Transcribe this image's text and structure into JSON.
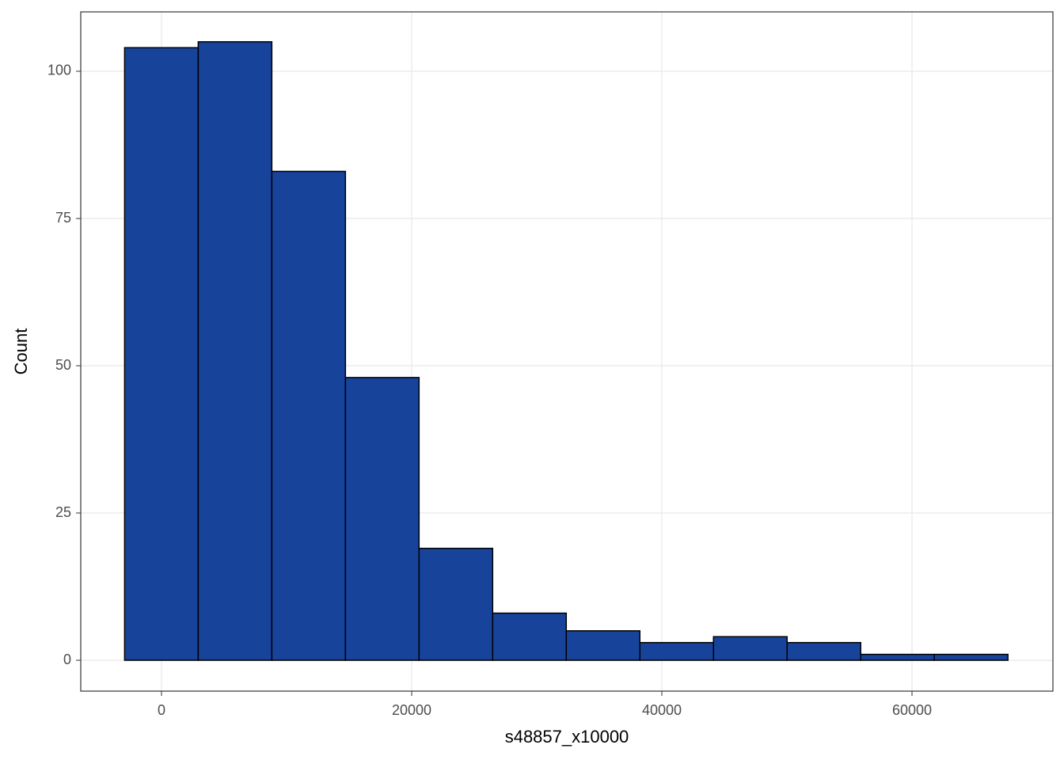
{
  "chart_data": {
    "type": "histogram",
    "xlabel": "s48857_x10000",
    "ylabel": "Count",
    "bins": [
      -2950,
      2935,
      8820,
      14705,
      20590,
      26475,
      32360,
      38245,
      44130,
      50015,
      55900,
      61785,
      67670
    ],
    "values": [
      104,
      105,
      83,
      48,
      19,
      8,
      5,
      3,
      4,
      3,
      1,
      1
    ],
    "color": "#17439b",
    "edgecolor": "#000000",
    "xlim": [
      -6456,
      71266
    ],
    "xticks": [
      0,
      20000,
      40000,
      60000
    ],
    "ylim": [
      -5.24,
      110.08
    ],
    "yticks": [
      0,
      25,
      50,
      75,
      100
    ],
    "grid": true
  }
}
